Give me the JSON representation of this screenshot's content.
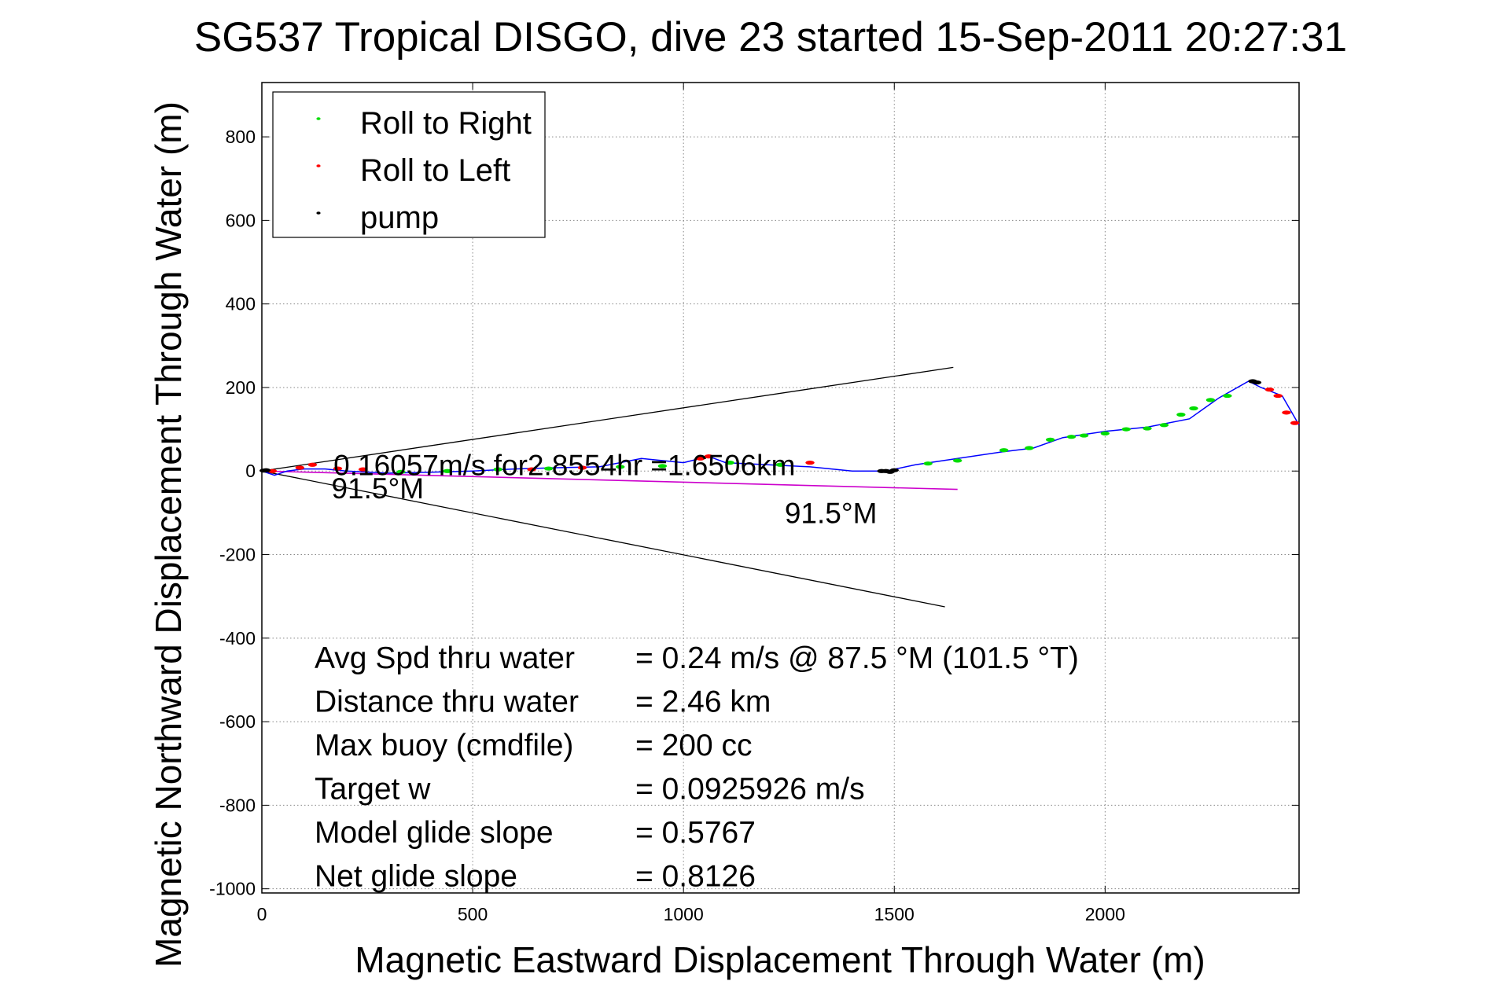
{
  "chart_data": {
    "type": "line",
    "title": "SG537 Tropical DISGO, dive 23 started 15-Sep-2011 20:27:31",
    "xlabel": "Magnetic Eastward Displacement Through Water (m)",
    "ylabel": "Magnetic Northward Displacement Through Water (m)",
    "xlim": [
      0,
      2460
    ],
    "ylim": [
      -1010,
      930
    ],
    "xticks": [
      0,
      500,
      1000,
      1500,
      2000
    ],
    "xtick_labels": [
      "0",
      "500",
      "1000",
      "1500",
      "2000"
    ],
    "yticks": [
      800,
      600,
      400,
      200,
      0,
      -200,
      -400,
      -600,
      -800,
      -1000
    ],
    "ytick_labels": [
      "800",
      "600",
      "400",
      "200",
      "0",
      "-200",
      "-400",
      "-600",
      "-800",
      "-1000"
    ],
    "grid": true,
    "legend": {
      "placement": "top-left",
      "entries": [
        {
          "label": "Roll to Right",
          "color": "#00dd00"
        },
        {
          "label": "Roll to Left",
          "color": "#ff0000"
        },
        {
          "label": "pump",
          "color": "#000000"
        }
      ]
    },
    "series": [
      {
        "name": "track",
        "color": "#0000ff",
        "x": [
          0,
          30,
          60,
          100,
          150,
          200,
          300,
          400,
          500,
          600,
          700,
          800,
          900,
          1000,
          1060,
          1100,
          1200,
          1300,
          1400,
          1480,
          1550,
          1650,
          1750,
          1830,
          1900,
          2000,
          2100,
          2200,
          2270,
          2340,
          2370,
          2420,
          2460
        ],
        "y": [
          0,
          -10,
          0,
          5,
          5,
          0,
          -5,
          -3,
          0,
          5,
          8,
          10,
          30,
          20,
          35,
          20,
          15,
          10,
          0,
          0,
          15,
          30,
          45,
          55,
          80,
          95,
          105,
          125,
          175,
          215,
          200,
          180,
          110
        ]
      },
      {
        "name": "Roll to Right",
        "color": "#00dd00",
        "x": [
          330,
          440,
          560,
          680,
          850,
          950,
          1110,
          1230,
          1580,
          1650,
          1760,
          1820,
          1870,
          1920,
          1950,
          2000,
          2050,
          2100,
          2140,
          2180,
          2210,
          2250,
          2290
        ],
        "y": [
          -2,
          0,
          4,
          6,
          10,
          12,
          20,
          15,
          18,
          25,
          50,
          55,
          75,
          82,
          85,
          90,
          100,
          102,
          110,
          135,
          150,
          170,
          180
        ]
      },
      {
        "name": "Roll to Left",
        "color": "#ff0000",
        "x": [
          25,
          90,
          120,
          180,
          240,
          640,
          760,
          1040,
          1060,
          1300,
          2390,
          2410,
          2430,
          2450
        ],
        "y": [
          0,
          8,
          15,
          6,
          4,
          4,
          8,
          30,
          35,
          20,
          195,
          180,
          140,
          115
        ]
      },
      {
        "name": "pump",
        "color": "#000000",
        "x": [
          5,
          10,
          1470,
          1480,
          1490,
          1500,
          2350,
          2360
        ],
        "y": [
          1,
          2,
          0,
          0,
          -2,
          2,
          215,
          212
        ]
      },
      {
        "name": "current vector",
        "color": "#cc00cc",
        "x": [
          0,
          1650
        ],
        "y": [
          0,
          -44
        ]
      },
      {
        "name": "bound upper",
        "color": "#000000",
        "x": [
          0,
          1640
        ],
        "y": [
          0,
          248
        ]
      },
      {
        "name": "bound lower",
        "color": "#000000",
        "x": [
          0,
          1620
        ],
        "y": [
          0,
          -325
        ]
      }
    ],
    "annotations": [
      {
        "text": "0.16057m/s for2.8554hr =1.6506km",
        "x": 170,
        "y": -10
      },
      {
        "text": "91.5°M",
        "x": 165,
        "y": -65
      },
      {
        "text": "91.5°M",
        "x": 1240,
        "y": -125
      }
    ],
    "stats": [
      {
        "label": "Avg Spd thru water",
        "value": "=  0.24 m/s @  87.5 °M (101.5 °T)"
      },
      {
        "label": "Distance thru water",
        "value": "=  2.46 km"
      },
      {
        "label": "Max buoy (cmdfile)",
        "value": "= 200 cc"
      },
      {
        "label": "Target w",
        "value": "= 0.0925926 m/s"
      },
      {
        "label": "Model glide slope",
        "value": "= 0.5767"
      },
      {
        "label": "Net glide slope",
        "value": "= 0.8126"
      }
    ]
  }
}
